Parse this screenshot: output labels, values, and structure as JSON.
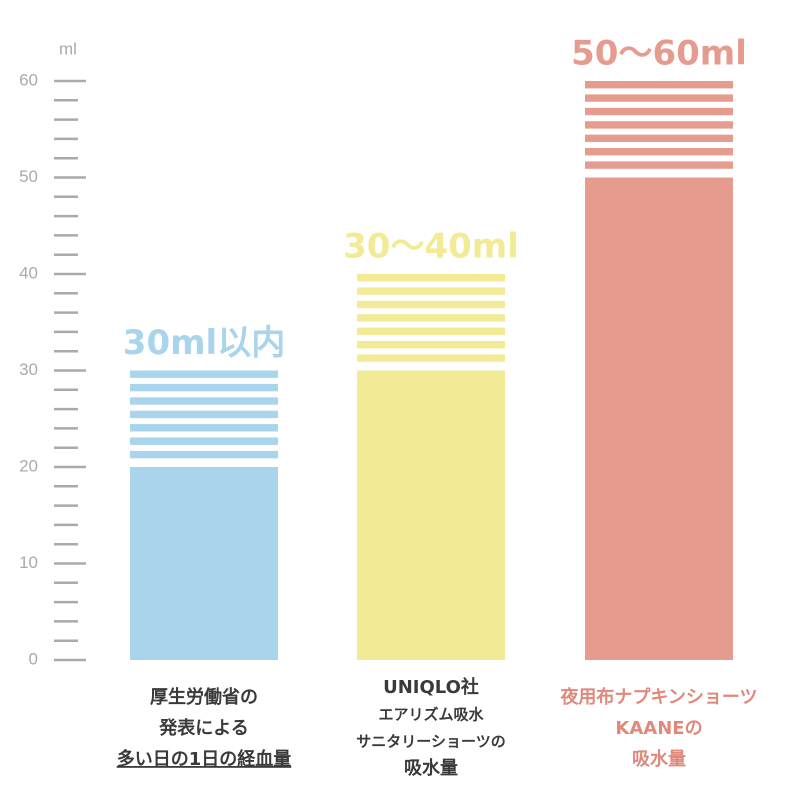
{
  "chart_data": {
    "type": "range-bar",
    "y_unit": "ml",
    "ylim": [
      0,
      62
    ],
    "yticks": [
      0,
      10,
      20,
      30,
      40,
      50,
      60
    ],
    "minor_yticks": [
      2,
      4,
      6,
      8,
      12,
      14,
      16,
      18,
      22,
      24,
      26,
      28,
      32,
      34,
      36,
      38,
      42,
      44,
      46,
      48,
      52,
      54,
      56,
      58
    ],
    "categories": [
      {
        "lines": [
          "厚生労働省の",
          "発表による",
          "多い日の1日の経血量"
        ],
        "color": "#3a3a3a",
        "underline_last": true
      },
      {
        "lines": [
          "UNIQLO社",
          "エアリズム吸水",
          "サニタリーショーツの",
          "吸水量"
        ],
        "color": "#3a3a3a",
        "underline_last": false
      },
      {
        "lines": [
          "夜用布ナプキンショーツ",
          "KAANEの",
          "吸水量"
        ],
        "color": "#e0887a",
        "underline_last": false
      }
    ],
    "series": [
      {
        "name": "min",
        "values": [
          20,
          30,
          50
        ]
      },
      {
        "name": "max",
        "values": [
          30,
          40,
          60
        ]
      }
    ],
    "value_labels": [
      "30ml以内",
      "30〜40ml",
      "50〜60ml"
    ],
    "colors": [
      "#a8d4ec",
      "#f2ea95",
      "#e59c8f"
    ]
  }
}
